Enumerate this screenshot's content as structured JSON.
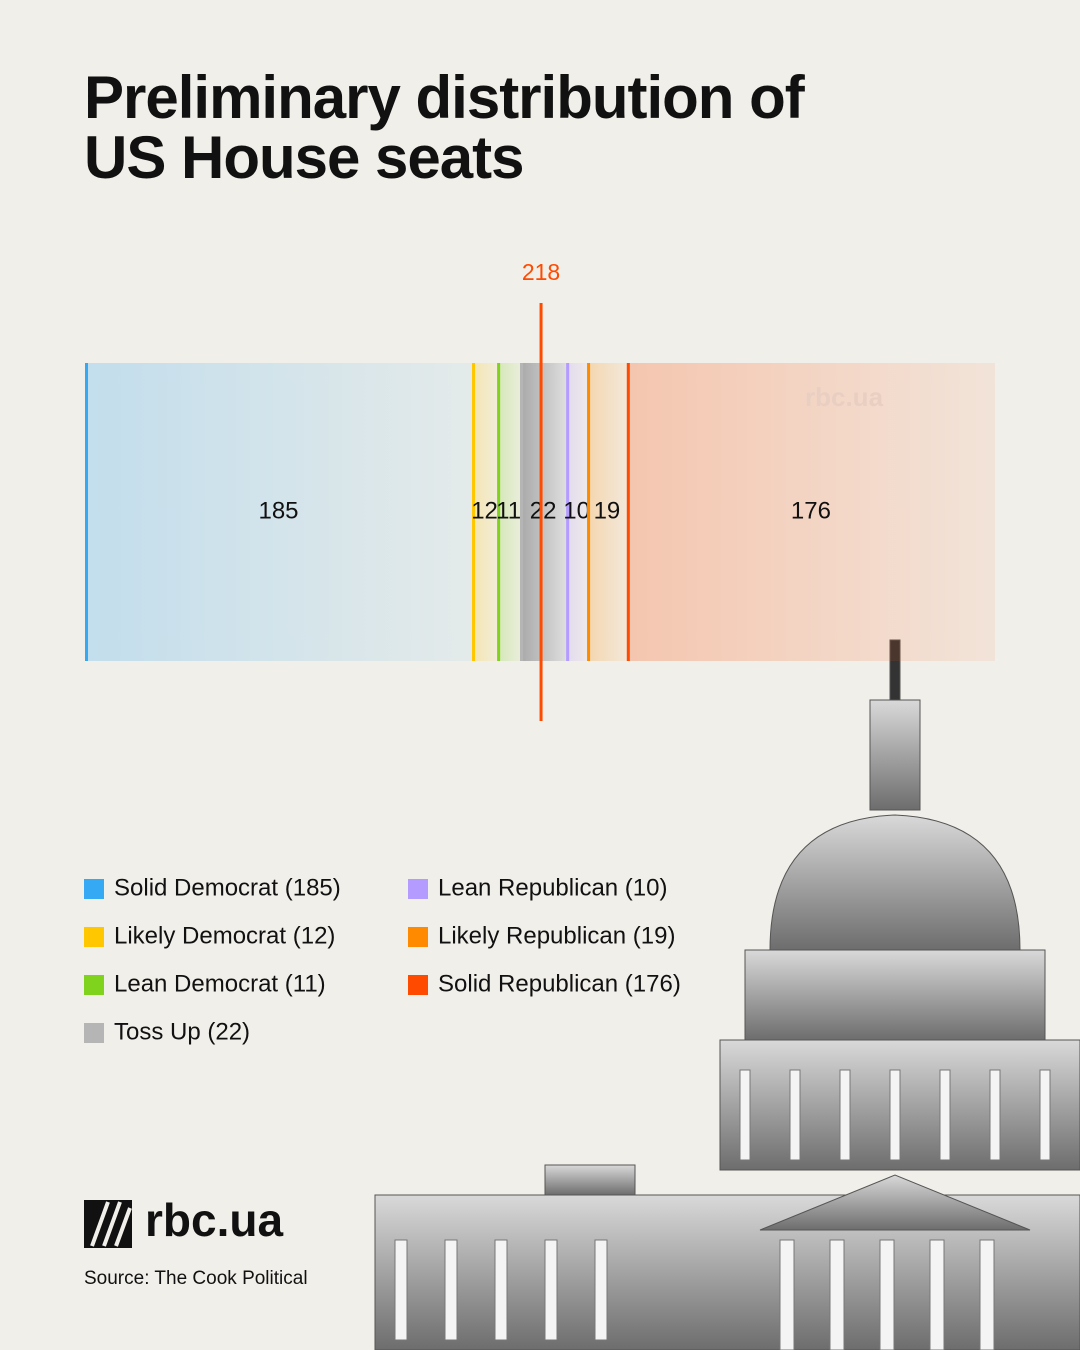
{
  "chart_data": {
    "type": "stacked-bar",
    "title": "Preliminary distribution of US House seats",
    "series": [
      {
        "name": "Solid Democrat (185)",
        "color": "#36a9f4",
        "values": [
          185
        ]
      },
      {
        "name": "Likely Democrat (12)",
        "color": "#ffc700",
        "values": [
          12
        ]
      },
      {
        "name": "Lean Democrat (11)",
        "color": "#7fd31c",
        "values": [
          11
        ]
      },
      {
        "name": "Toss Up (22)",
        "color": "#b5b5b5",
        "values": [
          22
        ]
      },
      {
        "name": "Lean Republican (10)",
        "color": "#b49bff",
        "values": [
          10
        ]
      },
      {
        "name": "Likely Republican (19)",
        "color": "#ff8a00",
        "values": [
          19
        ]
      },
      {
        "name": "Solid Republican (176)",
        "color": "#ff4a00",
        "values": [
          176
        ]
      }
    ],
    "threshold": 218,
    "threshold_color": "#ff4a00",
    "watermark": "rbc.ua",
    "logo": "rbc.ua",
    "source": "Source: The Cook Political"
  }
}
